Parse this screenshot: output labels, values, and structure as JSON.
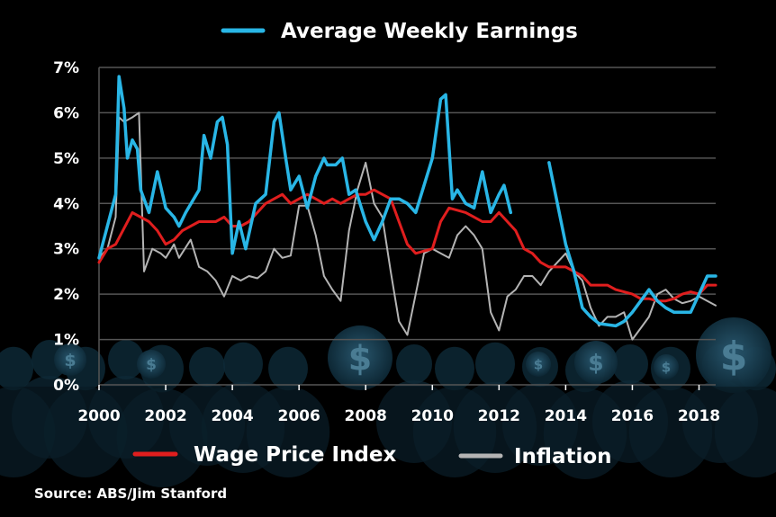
{
  "chart_data": {
    "type": "line",
    "title": "",
    "xlabel": "",
    "ylabel": "",
    "xlim": [
      2000,
      2018.5
    ],
    "ylim": [
      0,
      7
    ],
    "x_ticks": [
      2000,
      2002,
      2004,
      2006,
      2008,
      2010,
      2012,
      2014,
      2016,
      2018
    ],
    "y_ticks": [
      0,
      1,
      2,
      3,
      4,
      5,
      6,
      7
    ],
    "y_tick_labels": [
      "0%",
      "1%",
      "2%",
      "3%",
      "4%",
      "5%",
      "6%",
      "7%"
    ],
    "grid": true,
    "legend_placement": "top-center and bottom",
    "series": [
      {
        "name": "Average Weekly Earnings",
        "color": "#29b6e6",
        "points": [
          [
            2000,
            2.8
          ],
          [
            2000.25,
            3.5
          ],
          [
            2000.5,
            4.2
          ],
          [
            2000.6,
            6.8
          ],
          [
            2000.75,
            6.1
          ],
          [
            2000.85,
            5.0
          ],
          [
            2001,
            5.4
          ],
          [
            2001.15,
            5.2
          ],
          [
            2001.25,
            4.3
          ],
          [
            2001.5,
            3.8
          ],
          [
            2001.75,
            4.7
          ],
          [
            2002,
            3.9
          ],
          [
            2002.25,
            3.7
          ],
          [
            2002.4,
            3.5
          ],
          [
            2002.6,
            3.8
          ],
          [
            2003,
            4.3
          ],
          [
            2003.15,
            5.5
          ],
          [
            2003.35,
            5.0
          ],
          [
            2003.55,
            5.8
          ],
          [
            2003.7,
            5.9
          ],
          [
            2003.85,
            5.3
          ],
          [
            2004,
            2.9
          ],
          [
            2004.2,
            3.6
          ],
          [
            2004.4,
            3.0
          ],
          [
            2004.7,
            4.0
          ],
          [
            2005,
            4.2
          ],
          [
            2005.25,
            5.8
          ],
          [
            2005.4,
            6.0
          ],
          [
            2005.6,
            5.0
          ],
          [
            2005.75,
            4.3
          ],
          [
            2006,
            4.6
          ],
          [
            2006.25,
            3.9
          ],
          [
            2006.5,
            4.6
          ],
          [
            2006.75,
            5.0
          ],
          [
            2006.85,
            4.85
          ],
          [
            2007.1,
            4.85
          ],
          [
            2007.3,
            5.0
          ],
          [
            2007.5,
            4.2
          ],
          [
            2007.7,
            4.3
          ],
          [
            2008,
            3.6
          ],
          [
            2008.25,
            3.2
          ],
          [
            2008.5,
            3.6
          ],
          [
            2008.75,
            4.1
          ],
          [
            2009,
            4.1
          ],
          [
            2009.25,
            4.0
          ],
          [
            2009.5,
            3.8
          ],
          [
            2010,
            5.0
          ],
          [
            2010.25,
            6.3
          ],
          [
            2010.4,
            6.4
          ],
          [
            2010.6,
            4.1
          ],
          [
            2010.75,
            4.3
          ],
          [
            2011,
            4.0
          ],
          [
            2011.25,
            3.9
          ],
          [
            2011.5,
            4.7
          ],
          [
            2011.75,
            3.8
          ],
          [
            2012,
            4.2
          ],
          [
            2012.15,
            4.4
          ],
          [
            2012.35,
            3.8
          ]
        ]
      },
      {
        "name": "Average Weekly Earnings (continued)",
        "color": "#29b6e6",
        "points": [
          [
            2013.5,
            4.9
          ],
          [
            2014,
            3.1
          ],
          [
            2014.25,
            2.5
          ],
          [
            2014.5,
            1.7
          ],
          [
            2014.75,
            1.5
          ],
          [
            2015,
            1.35
          ],
          [
            2015.5,
            1.3
          ],
          [
            2015.75,
            1.4
          ],
          [
            2016,
            1.6
          ],
          [
            2016.25,
            1.85
          ],
          [
            2016.5,
            2.1
          ],
          [
            2016.75,
            1.85
          ],
          [
            2017,
            1.7
          ],
          [
            2017.25,
            1.6
          ],
          [
            2017.75,
            1.6
          ],
          [
            2018,
            2.0
          ],
          [
            2018.25,
            2.4
          ],
          [
            2018.5,
            2.4
          ]
        ]
      },
      {
        "name": "Wage Price Index",
        "color": "#e01e1e",
        "points": [
          [
            2000,
            2.7
          ],
          [
            2000.25,
            3.0
          ],
          [
            2000.5,
            3.1
          ],
          [
            2001,
            3.8
          ],
          [
            2001.5,
            3.6
          ],
          [
            2001.75,
            3.4
          ],
          [
            2002,
            3.1
          ],
          [
            2002.25,
            3.2
          ],
          [
            2002.5,
            3.4
          ],
          [
            2003,
            3.6
          ],
          [
            2003.5,
            3.6
          ],
          [
            2003.75,
            3.7
          ],
          [
            2004,
            3.5
          ],
          [
            2004.25,
            3.5
          ],
          [
            2004.5,
            3.6
          ],
          [
            2004.75,
            3.8
          ],
          [
            2005,
            4.0
          ],
          [
            2005.25,
            4.1
          ],
          [
            2005.5,
            4.2
          ],
          [
            2005.75,
            4.0
          ],
          [
            2006,
            4.1
          ],
          [
            2006.25,
            4.2
          ],
          [
            2006.5,
            4.1
          ],
          [
            2006.75,
            4.0
          ],
          [
            2007,
            4.1
          ],
          [
            2007.25,
            4.0
          ],
          [
            2007.5,
            4.1
          ],
          [
            2007.75,
            4.2
          ],
          [
            2008,
            4.2
          ],
          [
            2008.25,
            4.3
          ],
          [
            2008.5,
            4.2
          ],
          [
            2008.75,
            4.1
          ],
          [
            2009,
            3.6
          ],
          [
            2009.25,
            3.1
          ],
          [
            2009.5,
            2.9
          ],
          [
            2009.75,
            2.95
          ],
          [
            2010,
            3.0
          ],
          [
            2010.25,
            3.6
          ],
          [
            2010.5,
            3.9
          ],
          [
            2010.75,
            3.85
          ],
          [
            2011,
            3.8
          ],
          [
            2011.25,
            3.7
          ],
          [
            2011.5,
            3.6
          ],
          [
            2011.75,
            3.6
          ],
          [
            2012,
            3.8
          ],
          [
            2012.25,
            3.6
          ],
          [
            2012.5,
            3.4
          ],
          [
            2012.75,
            3.0
          ],
          [
            2013,
            2.9
          ],
          [
            2013.25,
            2.7
          ],
          [
            2013.5,
            2.6
          ],
          [
            2013.75,
            2.6
          ],
          [
            2014,
            2.6
          ],
          [
            2014.25,
            2.5
          ],
          [
            2014.5,
            2.4
          ],
          [
            2014.75,
            2.2
          ],
          [
            2015,
            2.2
          ],
          [
            2015.25,
            2.2
          ],
          [
            2015.5,
            2.1
          ],
          [
            2015.75,
            2.05
          ],
          [
            2016,
            2.0
          ],
          [
            2016.25,
            1.9
          ],
          [
            2016.5,
            1.9
          ],
          [
            2016.75,
            1.85
          ],
          [
            2017,
            1.85
          ],
          [
            2017.25,
            1.9
          ],
          [
            2017.5,
            2.0
          ],
          [
            2017.75,
            2.05
          ],
          [
            2018,
            2.0
          ],
          [
            2018.25,
            2.2
          ],
          [
            2018.5,
            2.2
          ]
        ]
      },
      {
        "name": "Inflation",
        "color": "#b4b4b4",
        "points": [
          [
            2000,
            2.8
          ],
          [
            2000.25,
            3.0
          ],
          [
            2000.5,
            3.7
          ],
          [
            2000.6,
            5.9
          ],
          [
            2000.75,
            5.8
          ],
          [
            2001,
            5.9
          ],
          [
            2001.2,
            6.0
          ],
          [
            2001.35,
            2.5
          ],
          [
            2001.6,
            3.0
          ],
          [
            2001.85,
            2.9
          ],
          [
            2002,
            2.8
          ],
          [
            2002.25,
            3.1
          ],
          [
            2002.4,
            2.8
          ],
          [
            2002.75,
            3.2
          ],
          [
            2003,
            2.6
          ],
          [
            2003.25,
            2.5
          ],
          [
            2003.5,
            2.3
          ],
          [
            2003.75,
            1.95
          ],
          [
            2004,
            2.4
          ],
          [
            2004.25,
            2.3
          ],
          [
            2004.5,
            2.4
          ],
          [
            2004.75,
            2.35
          ],
          [
            2005,
            2.5
          ],
          [
            2005.25,
            3.0
          ],
          [
            2005.5,
            2.8
          ],
          [
            2005.75,
            2.85
          ],
          [
            2006,
            3.95
          ],
          [
            2006.25,
            3.95
          ],
          [
            2006.5,
            3.3
          ],
          [
            2006.75,
            2.4
          ],
          [
            2007,
            2.1
          ],
          [
            2007.25,
            1.85
          ],
          [
            2007.5,
            3.4
          ],
          [
            2007.75,
            4.3
          ],
          [
            2008,
            4.9
          ],
          [
            2008.25,
            4.0
          ],
          [
            2008.5,
            3.7
          ],
          [
            2008.75,
            2.5
          ],
          [
            2009,
            1.4
          ],
          [
            2009.25,
            1.1
          ],
          [
            2009.5,
            2.0
          ],
          [
            2009.75,
            2.9
          ],
          [
            2010,
            3.0
          ],
          [
            2010.25,
            2.9
          ],
          [
            2010.5,
            2.8
          ],
          [
            2010.75,
            3.3
          ],
          [
            2011,
            3.5
          ],
          [
            2011.25,
            3.3
          ],
          [
            2011.5,
            3.0
          ],
          [
            2011.75,
            1.6
          ],
          [
            2012,
            1.2
          ],
          [
            2012.25,
            1.95
          ],
          [
            2012.5,
            2.1
          ],
          [
            2012.75,
            2.4
          ],
          [
            2013,
            2.4
          ],
          [
            2013.25,
            2.2
          ],
          [
            2013.5,
            2.5
          ],
          [
            2013.75,
            2.7
          ],
          [
            2014,
            2.9
          ],
          [
            2014.25,
            2.5
          ],
          [
            2014.5,
            2.3
          ],
          [
            2014.75,
            1.7
          ],
          [
            2015,
            1.3
          ],
          [
            2015.25,
            1.5
          ],
          [
            2015.5,
            1.5
          ],
          [
            2015.75,
            1.6
          ],
          [
            2016,
            1.0
          ],
          [
            2016.25,
            1.25
          ],
          [
            2016.5,
            1.5
          ],
          [
            2016.75,
            2.0
          ],
          [
            2017,
            2.1
          ],
          [
            2017.25,
            1.9
          ],
          [
            2017.5,
            1.8
          ],
          [
            2017.75,
            1.85
          ],
          [
            2018,
            1.95
          ],
          [
            2018.25,
            1.85
          ],
          [
            2018.5,
            1.75
          ]
        ]
      }
    ]
  },
  "legend": {
    "awe": "Average Weekly Earnings",
    "wpi": "Wage Price Index",
    "inflation": "Inflation"
  },
  "source": "Source: ABS/Jim Stanford",
  "colors": {
    "background": "#000000",
    "grid": "#555555",
    "awe": "#29b6e6",
    "wpi": "#e01e1e",
    "inflation": "#b4b4b4",
    "crowd": "#0e2a38"
  },
  "background_icons": [
    "dollar-coin-icon",
    "person-silhouette-icon"
  ],
  "background_icon_glyph": "$"
}
